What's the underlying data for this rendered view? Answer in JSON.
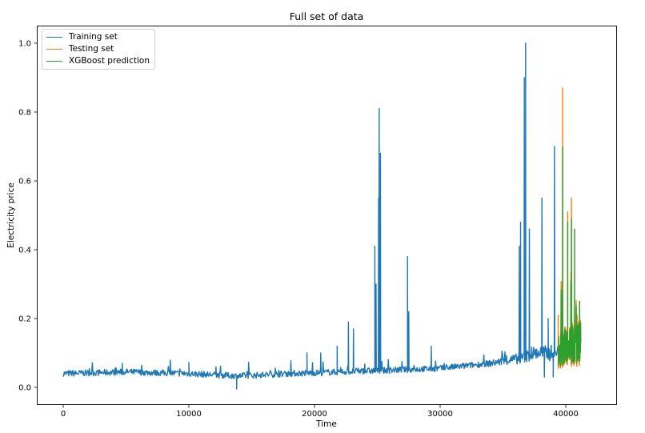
{
  "chart_data": {
    "type": "line",
    "title": "Full set of data",
    "xlabel": "Time",
    "ylabel": "Electricity price",
    "xlim": [
      -2000,
      43200
    ],
    "ylim": [
      -0.05,
      1.05
    ],
    "xticks": [
      0,
      10000,
      20000,
      30000,
      40000
    ],
    "xtick_labels": [
      "0",
      "10000",
      "20000",
      "30000",
      "40000"
    ],
    "yticks": [
      0.0,
      0.2,
      0.4,
      0.6,
      0.8,
      1.0
    ],
    "ytick_labels": [
      "0.0",
      "0.2",
      "0.4",
      "0.6",
      "0.8",
      "1.0"
    ],
    "grid": false,
    "legend_position": "upper left",
    "series": [
      {
        "name": "Training set",
        "color": "#1f77b4",
        "x_range": [
          0,
          39400
        ],
        "baseline": [
          [
            0,
            0.04
          ],
          [
            5000,
            0.045
          ],
          [
            10000,
            0.04
          ],
          [
            14000,
            0.033
          ],
          [
            18000,
            0.04
          ],
          [
            22000,
            0.045
          ],
          [
            26000,
            0.05
          ],
          [
            30000,
            0.055
          ],
          [
            34000,
            0.07
          ],
          [
            36500,
            0.085
          ],
          [
            37500,
            0.1
          ],
          [
            39400,
            0.1
          ]
        ],
        "spikes": [
          [
            4700,
            0.07
          ],
          [
            10000,
            0.072
          ],
          [
            19400,
            0.1
          ],
          [
            20500,
            0.1
          ],
          [
            21800,
            0.12
          ],
          [
            22700,
            0.19
          ],
          [
            23100,
            0.17
          ],
          [
            24800,
            0.41
          ],
          [
            24900,
            0.3
          ],
          [
            25100,
            0.55
          ],
          [
            25150,
            0.81
          ],
          [
            25250,
            0.68
          ],
          [
            27400,
            0.38
          ],
          [
            27500,
            0.22
          ],
          [
            29300,
            0.12
          ],
          [
            36300,
            0.41
          ],
          [
            36400,
            0.48
          ],
          [
            36700,
            0.9
          ],
          [
            36800,
            1.0
          ],
          [
            37100,
            0.46
          ],
          [
            38100,
            0.55
          ],
          [
            38600,
            0.2
          ],
          [
            39100,
            0.7
          ]
        ],
        "dips": [
          [
            13800,
            -0.005
          ],
          [
            38300,
            0.03
          ],
          [
            39000,
            0.03
          ]
        ]
      },
      {
        "name": "Testing set",
        "color": "#ff7f0e",
        "x_range": [
          39400,
          41200
        ],
        "baseline": [
          [
            39400,
            0.11
          ],
          [
            40200,
            0.12
          ],
          [
            41200,
            0.13
          ]
        ],
        "spikes": [
          [
            39400,
            0.21
          ],
          [
            39750,
            0.87
          ],
          [
            40150,
            0.51
          ],
          [
            40450,
            0.55
          ],
          [
            40700,
            0.2
          ],
          [
            40900,
            0.21
          ],
          [
            41100,
            0.25
          ]
        ]
      },
      {
        "name": "XGBoost prediction",
        "color": "#2ca02c",
        "x_range": [
          39400,
          41200
        ],
        "baseline": [
          [
            39400,
            0.11
          ],
          [
            40200,
            0.12
          ],
          [
            41200,
            0.13
          ]
        ],
        "spikes": [
          [
            39750,
            0.7
          ],
          [
            40150,
            0.48
          ],
          [
            40450,
            0.49
          ],
          [
            40700,
            0.46
          ],
          [
            40900,
            0.18
          ],
          [
            41100,
            0.25
          ]
        ]
      }
    ]
  },
  "legend": {
    "items": [
      {
        "label": "Training set",
        "color": "#1f77b4"
      },
      {
        "label": "Testing set",
        "color": "#ff7f0e"
      },
      {
        "label": "XGBoost prediction",
        "color": "#2ca02c"
      }
    ]
  }
}
